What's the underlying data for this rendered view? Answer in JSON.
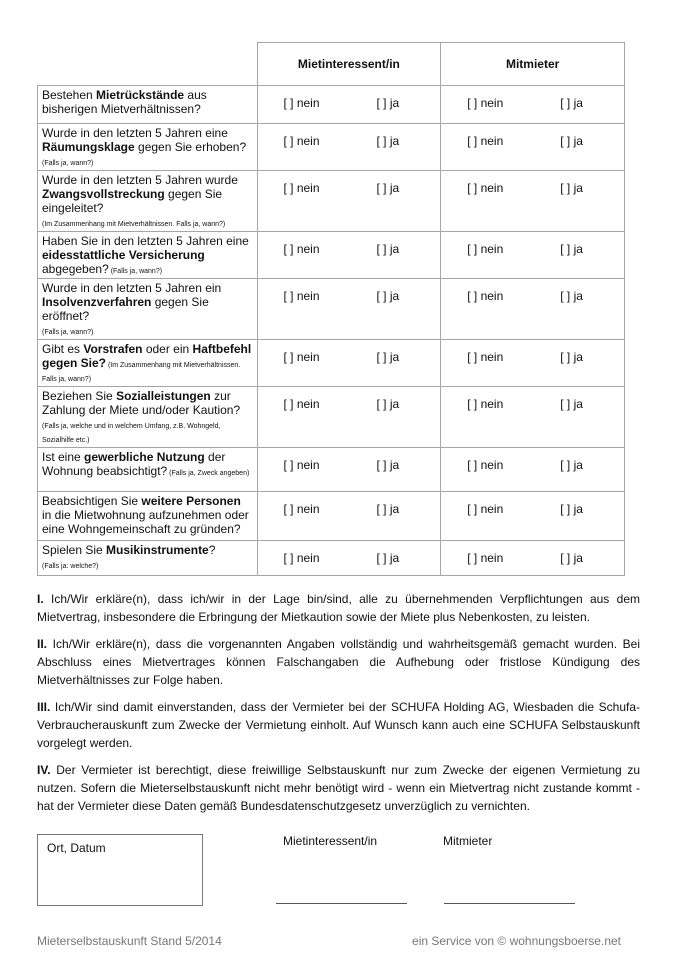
{
  "header": {
    "col1": "Mietinteressent/in",
    "col2": "Mitmieter"
  },
  "options": {
    "nein": "[  ] nein",
    "ja": "[  ] ja"
  },
  "rows": [
    {
      "parts": [
        {
          "t": "Bestehen ",
          "b": false
        },
        {
          "t": "Mietrückstände",
          "b": true
        },
        {
          "t": " aus bisherigen Mietverhältnissen?",
          "b": false
        }
      ],
      "note": ""
    },
    {
      "parts": [
        {
          "t": "Wurde in den letzten 5 Jahren eine ",
          "b": false
        },
        {
          "t": "Räumungsklage",
          "b": true
        },
        {
          "t": " gegen Sie erhoben?",
          "b": false
        }
      ],
      "note": "(Falls  ja, wann?)"
    },
    {
      "parts": [
        {
          "t": "Wurde in den letzten 5 Jahren wurde ",
          "b": false
        },
        {
          "t": "Zwangsvollstreckung",
          "b": true
        },
        {
          "t": " gegen Sie eingeleitet?",
          "b": false
        }
      ],
      "note": "(Im Zusammenhang mit Mietverhältnissen. Falls ja, wann?)"
    },
    {
      "parts": [
        {
          "t": "Haben Sie in den letzten 5 Jahren eine ",
          "b": false
        },
        {
          "t": "eidesstattliche Versicherung",
          "b": true
        },
        {
          "t": " abgegeben?",
          "b": false
        }
      ],
      "note": " (Falls ja, wann?)",
      "inline": true
    },
    {
      "parts": [
        {
          "t": "Wurde in den letzten 5 Jahren ein ",
          "b": false
        },
        {
          "t": "Insolvenzverfahren",
          "b": true
        },
        {
          "t": " gegen Sie eröffnet?",
          "b": false
        }
      ],
      "note": "(Falls ja, wann?)"
    },
    {
      "parts": [
        {
          "t": "Gibt es ",
          "b": false
        },
        {
          "t": "Vorstrafen",
          "b": true
        },
        {
          "t": " oder ein ",
          "b": false
        },
        {
          "t": "Haftbefehl gegen Sie?",
          "b": true
        }
      ],
      "note": " (Im Zusammenhang mit Mietverhältnissen. Falls ja, wann?)",
      "inline": true
    },
    {
      "parts": [
        {
          "t": "Beziehen Sie ",
          "b": false
        },
        {
          "t": "Sozialleistungen",
          "b": true
        },
        {
          "t": " zur Zahlung der Miete und/oder Kaution?",
          "b": false
        }
      ],
      "note": "(Falls ja, welche und in welchem Umfang, z.B. Wohngeld, Sozialhilfe etc.)"
    },
    {
      "parts": [
        {
          "t": "Ist eine ",
          "b": false
        },
        {
          "t": "gewerbliche Nutzung",
          "b": true
        },
        {
          "t": " der Wohnung beabsichtigt?",
          "b": false
        }
      ],
      "note": " (Falls ja, Zweck angeben)",
      "inline": true
    },
    {
      "parts": [
        {
          "t": "Beabsichtigen Sie ",
          "b": false
        },
        {
          "t": "weitere Personen",
          "b": true
        },
        {
          "t": " in die Mietwohnung aufzunehmen oder eine Wohngemeinschaft zu gründen?",
          "b": false
        }
      ],
      "note": ""
    },
    {
      "parts": [
        {
          "t": "Spielen Sie ",
          "b": false
        },
        {
          "t": "Musikinstrumente",
          "b": true
        },
        {
          "t": "?",
          "b": false
        }
      ],
      "note": "(Falls ja: welche?)"
    }
  ],
  "paragraphs": [
    {
      "num": "I.",
      "text": " Ich/Wir erkläre(n), dass ich/wir in der Lage bin/sind, alle zu übernehmenden Verpflichtungen aus dem Mietvertrag, insbesondere die Erbringung der Mietkaution sowie der Miete plus Nebenkosten, zu leisten."
    },
    {
      "num": "II.",
      "text": " Ich/Wir erkläre(n), dass die vorgenannten Angaben vollständig und wahrheitsgemäß gemacht wurden. Bei Abschluss eines Mietvertrages können Falschangaben die Aufhebung oder fristlose Kündigung des Mietverhältnisses zur Folge haben."
    },
    {
      "num": "III.",
      "text": " Ich/Wir sind damit einverstanden, dass der Vermieter bei der SCHUFA Holding AG, Wiesbaden die Schufa-Verbraucherauskunft zum Zwecke der Vermietung einholt. Auf Wunsch kann auch eine SCHUFA Selbstauskunft vorgelegt werden."
    },
    {
      "num": "IV.",
      "text": " Der Vermieter ist berechtigt, diese freiwillige Selbstauskunft nur zum Zwecke der eigenen Vermietung zu nutzen. Sofern die Mieterselbstauskunft nicht mehr benötigt wird - wenn ein Mietvertrag nicht zustande kommt - hat der Vermieter diese Daten gemäß Bundesdatenschutzgesetz unverzüglich zu vernichten."
    }
  ],
  "signature": {
    "place_date": "Ort, Datum",
    "tenant": "Mietinteressent/in",
    "cotenant": "Mitmieter"
  },
  "footer": {
    "left": "Mieterselbstauskunft Stand 5/2014",
    "right": "ein Service von © wohnungsboerse.net"
  }
}
